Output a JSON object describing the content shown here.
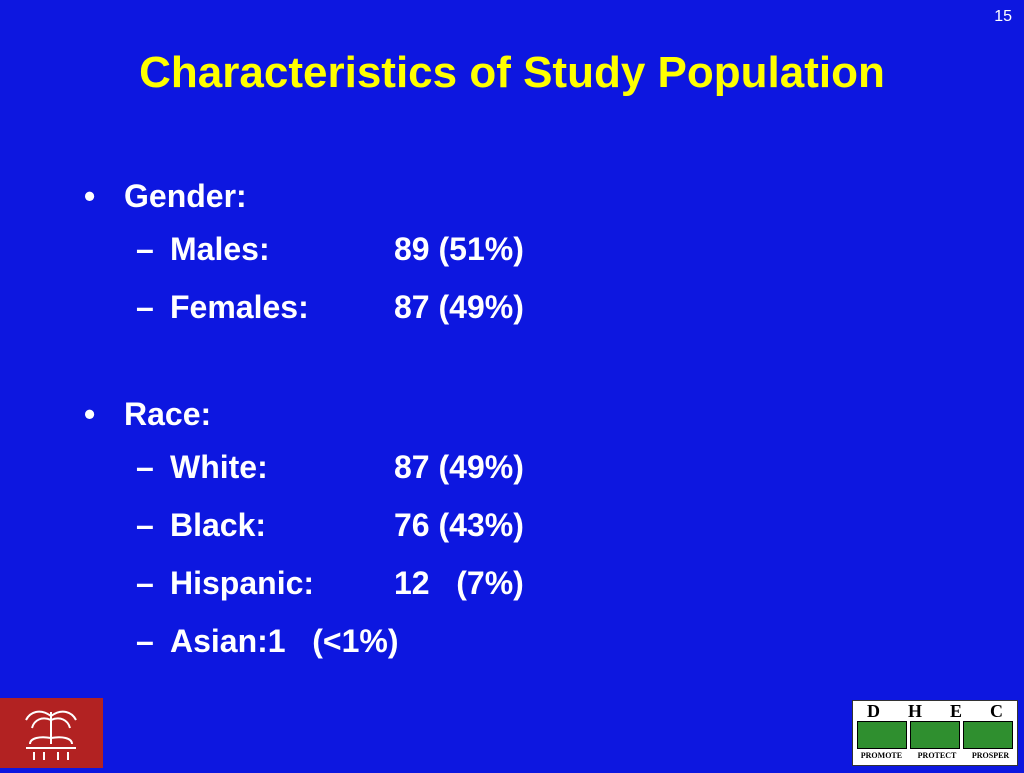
{
  "slide_number": "15",
  "title": "Characteristics of Study Population",
  "sections": [
    {
      "heading": "Gender:",
      "items": [
        {
          "label": "Males:",
          "value": "89 (51%)"
        },
        {
          "label": "Females:",
          "value": "87 (49%)"
        }
      ]
    },
    {
      "heading": "Race:",
      "items": [
        {
          "label": "White:",
          "value": "87 (49%)"
        },
        {
          "label": "Black:",
          "value": "76 (43%)"
        },
        {
          "label": "Hispanic:",
          "value": "12   (7%)"
        },
        {
          "label": "Asian:",
          "value": "1   (<1%)"
        }
      ]
    }
  ],
  "logos": {
    "left": "university-seal-icon",
    "right": {
      "letters": [
        "D",
        "H",
        "E",
        "C"
      ],
      "words": [
        "PROMOTE",
        "PROTECT",
        "PROSPER"
      ]
    }
  },
  "colors": {
    "background": "#0d17e0",
    "title": "#ffff00",
    "text": "#ffffff"
  }
}
